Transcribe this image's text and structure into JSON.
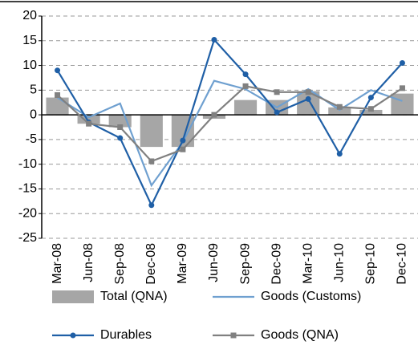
{
  "chart_data": {
    "type": "combo",
    "categories": [
      "Mar-08",
      "Jun-08",
      "Sep-08",
      "Dec-08",
      "Mar-09",
      "Jun-09",
      "Sep-09",
      "Dec-09",
      "Mar-10",
      "Jun-10",
      "Sep-10",
      "Dec-10"
    ],
    "series": [
      {
        "name": "Total (QNA)",
        "type": "bar",
        "color": "#a6a6a6",
        "values": [
          3.5,
          -1.8,
          -2.5,
          -6.5,
          -6.5,
          -0.8,
          3.0,
          3.0,
          4.8,
          1.5,
          1.0,
          4.3
        ]
      },
      {
        "name": "Goods (Customs)",
        "type": "line",
        "color": "#6fa0d0",
        "marker": "none",
        "values": [
          3.5,
          -0.5,
          2.3,
          -14.3,
          -5.5,
          6.9,
          5.2,
          1.5,
          5.2,
          1.0,
          5.0,
          2.8
        ]
      },
      {
        "name": "Durables",
        "type": "line",
        "color": "#1f5fa6",
        "marker": "circle",
        "values": [
          9.0,
          -1.5,
          -4.7,
          -18.3,
          -5.2,
          15.2,
          8.2,
          0.5,
          3.2,
          -7.9,
          3.5,
          10.5
        ]
      },
      {
        "name": "Goods (QNA)",
        "type": "line",
        "color": "#808080",
        "marker": "square",
        "values": [
          4.0,
          -1.8,
          -2.5,
          -9.4,
          -7.0,
          0.0,
          5.8,
          4.6,
          4.6,
          1.6,
          1.2,
          5.4
        ]
      }
    ],
    "ylim": [
      -25,
      20
    ],
    "yticks": [
      -25,
      -20,
      -15,
      -10,
      -5,
      0,
      5,
      10,
      15,
      20
    ],
    "grid": true
  }
}
